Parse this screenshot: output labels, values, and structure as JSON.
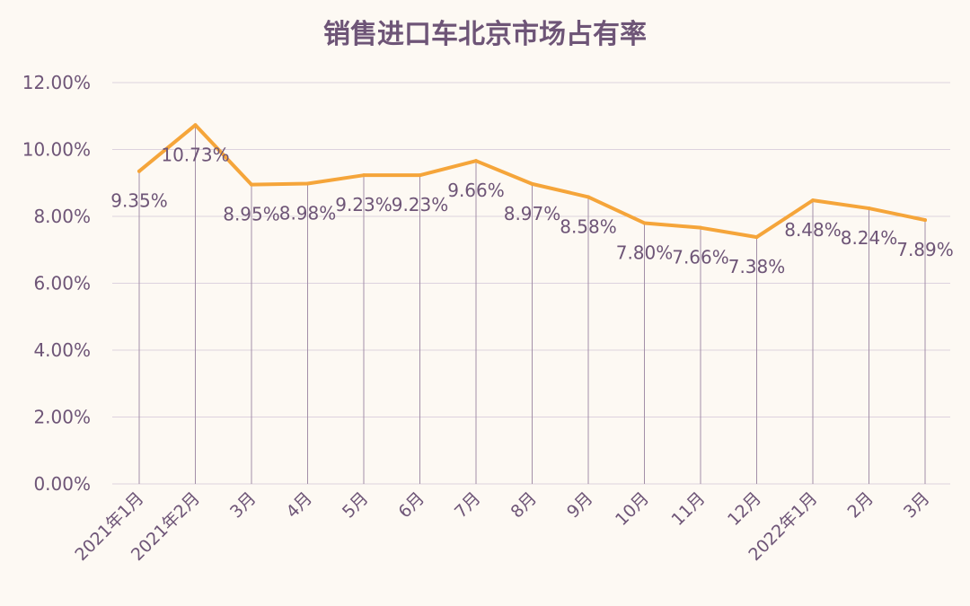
{
  "chart_data": {
    "type": "line",
    "title": "销售进口车北京市场占有率",
    "categories": [
      "2021年1月",
      "2021年2月",
      "3月",
      "4月",
      "5月",
      "6月",
      "7月",
      "8月",
      "9月",
      "10月",
      "11月",
      "12月",
      "2022年1月",
      "2月",
      "3月"
    ],
    "series": [
      {
        "values": [
          9.35,
          10.73,
          8.95,
          8.98,
          9.23,
          9.23,
          9.66,
          8.97,
          8.58,
          7.8,
          7.66,
          7.38,
          8.48,
          8.24,
          7.89
        ]
      }
    ],
    "data_labels": [
      "9.35%",
      "10.73%",
      "8.95%",
      "8.98%",
      "9.23%",
      "9.23%",
      "9.66%",
      "8.97%",
      "8.58%",
      "7.80%",
      "7.66%",
      "7.38%",
      "8.48%",
      "8.24%",
      "7.89%"
    ],
    "y_ticks": [
      "0.00%",
      "2.00%",
      "4.00%",
      "6.00%",
      "8.00%",
      "10.00%",
      "12.00%"
    ],
    "ylim": [
      0,
      12
    ],
    "grid": true,
    "drop_lines": true,
    "colors": {
      "line": "#f5a53a",
      "grid": "#ddd2de",
      "dropline": "#a38fa8",
      "text": "#6e5577"
    }
  }
}
